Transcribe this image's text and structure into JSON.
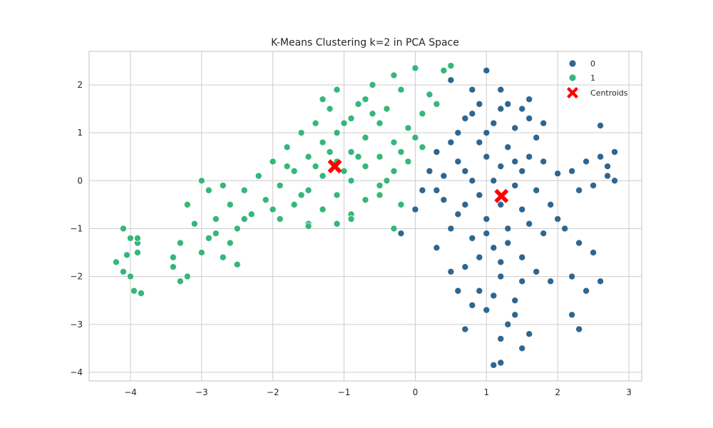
{
  "chart_data": {
    "type": "scatter",
    "title": "K-Means Clustering k=2 in PCA Space",
    "xlabel": "",
    "ylabel": "",
    "xlim": [
      -4.58,
      3.18
    ],
    "ylim": [
      -4.18,
      2.7
    ],
    "x_ticks": [
      -4,
      -3,
      -2,
      -1,
      0,
      1,
      2,
      3
    ],
    "x_tick_labels": [
      "−4",
      "−3",
      "−2",
      "−1",
      "0",
      "1",
      "2",
      "3"
    ],
    "y_ticks": [
      -4,
      -3,
      -2,
      -1,
      0,
      1,
      2
    ],
    "y_tick_labels": [
      "−4",
      "−3",
      "−2",
      "−1",
      "0",
      "1",
      "2"
    ],
    "grid": true,
    "legend_position": "top-right",
    "legend_entries": [
      "0",
      "1",
      "Centroids"
    ],
    "series": [
      {
        "name": "0",
        "color": "#2f6690",
        "points": [
          [
            1.0,
            2.3
          ],
          [
            0.5,
            2.1
          ],
          [
            1.2,
            1.9
          ],
          [
            1.6,
            1.7
          ],
          [
            1.5,
            1.5
          ],
          [
            0.8,
            1.4
          ],
          [
            1.1,
            1.2
          ],
          [
            1.4,
            1.1
          ],
          [
            1.7,
            0.9
          ],
          [
            0.9,
            0.8
          ],
          [
            1.3,
            0.7
          ],
          [
            1.6,
            0.5
          ],
          [
            1.0,
            0.5
          ],
          [
            1.2,
            0.3
          ],
          [
            1.5,
            0.2
          ],
          [
            0.7,
            0.2
          ],
          [
            0.4,
            0.1
          ],
          [
            1.1,
            0.0
          ],
          [
            1.4,
            -0.1
          ],
          [
            1.7,
            -0.2
          ],
          [
            0.9,
            -0.3
          ],
          [
            1.2,
            -0.5
          ],
          [
            1.5,
            -0.6
          ],
          [
            0.6,
            -0.7
          ],
          [
            1.0,
            -0.8
          ],
          [
            1.3,
            -1.0
          ],
          [
            0.8,
            -1.2
          ],
          [
            1.1,
            -1.4
          ],
          [
            1.5,
            -1.6
          ],
          [
            0.7,
            -1.8
          ],
          [
            1.2,
            -2.0
          ],
          [
            0.9,
            -2.3
          ],
          [
            1.4,
            -2.5
          ],
          [
            1.0,
            -2.7
          ],
          [
            1.3,
            -3.0
          ],
          [
            1.2,
            -3.3
          ],
          [
            1.5,
            -3.5
          ],
          [
            1.2,
            -3.8
          ],
          [
            1.1,
            -3.85
          ],
          [
            0.7,
            -3.1
          ],
          [
            0.3,
            0.6
          ],
          [
            0.2,
            0.2
          ],
          [
            0.1,
            -0.2
          ],
          [
            0.0,
            -0.6
          ],
          [
            -0.2,
            -1.1
          ],
          [
            0.3,
            -1.4
          ],
          [
            0.5,
            -1.0
          ],
          [
            0.6,
            1.0
          ],
          [
            0.7,
            1.3
          ],
          [
            0.9,
            1.6
          ],
          [
            2.2,
            0.2
          ],
          [
            2.4,
            0.4
          ],
          [
            2.6,
            0.5
          ],
          [
            2.8,
            0.6
          ],
          [
            2.7,
            0.1
          ],
          [
            2.5,
            -0.1
          ],
          [
            2.3,
            -0.2
          ],
          [
            2.6,
            1.15
          ],
          [
            2.7,
            0.3
          ],
          [
            2.8,
            0.0
          ],
          [
            2.1,
            -1.0
          ],
          [
            2.3,
            -1.3
          ],
          [
            2.5,
            -1.5
          ],
          [
            2.2,
            -2.0
          ],
          [
            2.4,
            -2.3
          ],
          [
            2.2,
            -2.8
          ],
          [
            2.3,
            -3.1
          ],
          [
            2.6,
            -2.1
          ],
          [
            2.0,
            0.15
          ],
          [
            1.8,
            1.2
          ],
          [
            1.9,
            -0.5
          ],
          [
            1.8,
            -1.1
          ],
          [
            2.0,
            -0.8
          ],
          [
            0.4,
            -0.4
          ],
          [
            0.5,
            -1.9
          ],
          [
            0.6,
            -2.3
          ],
          [
            1.7,
            -1.9
          ],
          [
            1.9,
            -2.1
          ],
          [
            1.4,
            -2.8
          ],
          [
            1.6,
            -3.2
          ],
          [
            0.8,
            1.9
          ],
          [
            1.3,
            1.6
          ],
          [
            0.6,
            0.4
          ],
          [
            0.3,
            -0.2
          ],
          [
            0.8,
            0.0
          ],
          [
            1.4,
            0.4
          ],
          [
            1.8,
            0.4
          ],
          [
            0.5,
            0.8
          ],
          [
            1.0,
            1.0
          ],
          [
            1.6,
            1.3
          ],
          [
            1.2,
            1.5
          ],
          [
            0.7,
            -0.5
          ],
          [
            1.0,
            -1.1
          ],
          [
            1.3,
            -1.3
          ],
          [
            1.6,
            -0.9
          ],
          [
            0.9,
            -1.6
          ],
          [
            1.2,
            -1.7
          ],
          [
            1.5,
            -2.1
          ],
          [
            1.1,
            -2.4
          ],
          [
            0.8,
            -2.6
          ]
        ]
      },
      {
        "name": "1",
        "color": "#35b779",
        "points": [
          [
            0.5,
            2.4
          ],
          [
            0.4,
            2.3
          ],
          [
            0.0,
            2.35
          ],
          [
            -0.3,
            2.2
          ],
          [
            -0.6,
            2.0
          ],
          [
            -1.1,
            1.9
          ],
          [
            -1.3,
            1.7
          ],
          [
            -0.8,
            1.6
          ],
          [
            -0.4,
            1.5
          ],
          [
            0.1,
            1.4
          ],
          [
            -1.2,
            1.5
          ],
          [
            -0.9,
            1.3
          ],
          [
            -0.5,
            1.2
          ],
          [
            -0.1,
            1.1
          ],
          [
            -1.4,
            1.2
          ],
          [
            -1.1,
            1.0
          ],
          [
            -0.7,
            0.9
          ],
          [
            -0.3,
            0.8
          ],
          [
            0.1,
            0.7
          ],
          [
            -1.6,
            1.0
          ],
          [
            -1.3,
            0.8
          ],
          [
            -0.9,
            0.6
          ],
          [
            -0.5,
            0.5
          ],
          [
            -0.1,
            0.4
          ],
          [
            -1.8,
            0.7
          ],
          [
            -1.5,
            0.5
          ],
          [
            -1.1,
            0.4
          ],
          [
            -0.7,
            0.3
          ],
          [
            -0.3,
            0.2
          ],
          [
            -2.0,
            0.4
          ],
          [
            -1.7,
            0.2
          ],
          [
            -1.3,
            0.1
          ],
          [
            -0.9,
            0.0
          ],
          [
            -0.5,
            -0.1
          ],
          [
            -2.2,
            0.1
          ],
          [
            -1.9,
            -0.1
          ],
          [
            -1.5,
            -0.2
          ],
          [
            -1.1,
            -0.3
          ],
          [
            -0.7,
            -0.4
          ],
          [
            -2.4,
            -0.2
          ],
          [
            -2.1,
            -0.4
          ],
          [
            -1.7,
            -0.5
          ],
          [
            -1.3,
            -0.6
          ],
          [
            -0.9,
            -0.7
          ],
          [
            -2.6,
            -0.5
          ],
          [
            -2.3,
            -0.7
          ],
          [
            -1.9,
            -0.8
          ],
          [
            -1.5,
            -0.9
          ],
          [
            -2.8,
            -0.8
          ],
          [
            -2.5,
            -1.0
          ],
          [
            -2.9,
            -1.2
          ],
          [
            -2.6,
            -1.3
          ],
          [
            -3.0,
            -1.5
          ],
          [
            -2.7,
            -1.6
          ],
          [
            -2.5,
            -1.75
          ],
          [
            -3.2,
            -0.5
          ],
          [
            -3.1,
            -0.9
          ],
          [
            -3.3,
            -1.3
          ],
          [
            -3.4,
            -1.8
          ],
          [
            -3.3,
            -2.1
          ],
          [
            -3.4,
            -1.6
          ],
          [
            -3.2,
            -2.0
          ],
          [
            -4.1,
            -1.0
          ],
          [
            -4.0,
            -1.2
          ],
          [
            -3.9,
            -1.3
          ],
          [
            -4.2,
            -1.7
          ],
          [
            -4.1,
            -1.9
          ],
          [
            -4.0,
            -2.0
          ],
          [
            -3.95,
            -2.3
          ],
          [
            -3.85,
            -2.35
          ],
          [
            -3.9,
            -1.5
          ],
          [
            -4.05,
            -1.55
          ],
          [
            -3.9,
            -1.2
          ],
          [
            -3.0,
            0.0
          ],
          [
            -2.9,
            -0.2
          ],
          [
            -2.7,
            -0.1
          ],
          [
            -0.9,
            -0.8
          ],
          [
            -0.5,
            -0.3
          ],
          [
            -0.2,
            -0.5
          ],
          [
            -1.1,
            -0.9
          ],
          [
            -1.5,
            -0.95
          ],
          [
            -0.3,
            -1.0
          ],
          [
            -0.2,
            0.6
          ],
          [
            0.2,
            1.8
          ],
          [
            0.3,
            1.6
          ],
          [
            -0.2,
            1.9
          ],
          [
            -0.7,
            1.7
          ],
          [
            -1.0,
            1.2
          ],
          [
            -1.4,
            0.3
          ],
          [
            -0.8,
            0.5
          ],
          [
            -0.4,
            0.0
          ],
          [
            0.0,
            0.9
          ],
          [
            -0.6,
            1.4
          ],
          [
            -1.2,
            0.6
          ],
          [
            -2.0,
            -0.6
          ],
          [
            -2.4,
            -0.8
          ],
          [
            -2.8,
            -1.1
          ],
          [
            -1.8,
            0.3
          ],
          [
            -1.6,
            -0.3
          ],
          [
            -1.0,
            0.2
          ]
        ]
      }
    ],
    "centroids": {
      "name": "Centroids",
      "color": "#ff0000",
      "points": [
        [
          -1.13,
          0.3
        ],
        [
          1.21,
          -0.32
        ]
      ]
    }
  }
}
